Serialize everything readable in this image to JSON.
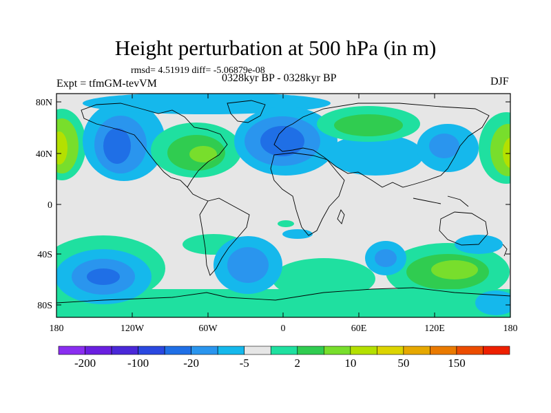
{
  "header": {
    "title": "Height perturbation at 500 hPa (in m)",
    "stats": "rmsd= 4.51919 diff= -5.06879e-08",
    "experiment": "Expt = tfmGM-tevVM",
    "period": "0328kyr BP - 0328kyr BP",
    "season": "DJF"
  },
  "axes": {
    "lat_labels": [
      "80N",
      "40N",
      "0",
      "40S",
      "80S"
    ],
    "lon_labels": [
      "180",
      "120W",
      "60W",
      "0",
      "60E",
      "120E",
      "180"
    ]
  },
  "colorbar": {
    "colors": [
      "#8a2ef0",
      "#6a1fe0",
      "#4a28d8",
      "#2a48e0",
      "#1f6fe6",
      "#2a95ee",
      "#15b8ec",
      "#e6e6e6",
      "#1fe0a0",
      "#30cc50",
      "#78de2c",
      "#b4e000",
      "#dcd400",
      "#e6a800",
      "#ea7a00",
      "#ec4c00",
      "#ee2000"
    ],
    "labels": [
      "-200",
      "-100",
      "-20",
      "-5",
      "2",
      "10",
      "50",
      "150"
    ]
  },
  "legend_colors": {
    "neutral": "#e6e6e6",
    "negative_light": "#15b8ec",
    "negative_mid": "#2a95ee",
    "negative_strong": "#1f6fe6",
    "positive_light": "#1fe0a0",
    "positive_mid": "#30cc50",
    "positive_strong": "#78de2c",
    "positive_max": "#b4e000"
  }
}
